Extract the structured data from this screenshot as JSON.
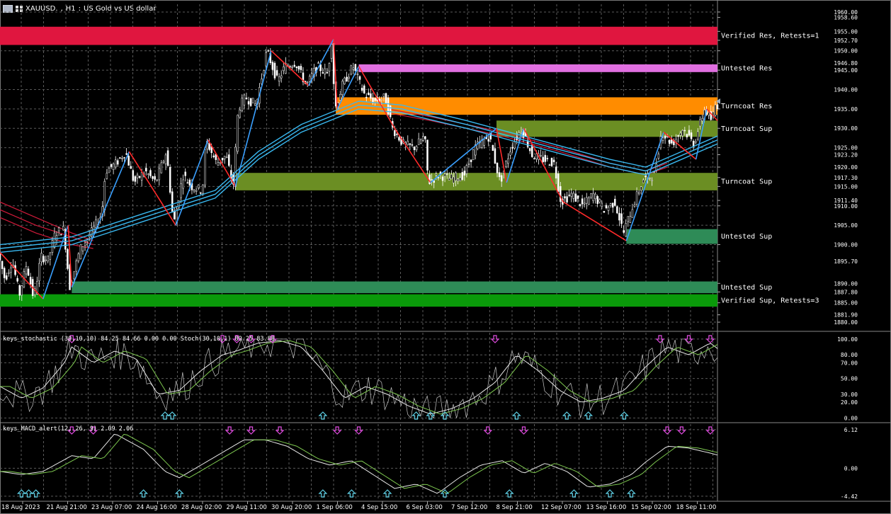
{
  "header": {
    "symbol": "XAUUSD.",
    "timeframe": "H1",
    "description": "US Gold vs US dollar",
    "flag_icon": "flag-icon",
    "chart_icon": "chart-grid-icon"
  },
  "colors": {
    "background": "#000000",
    "grid": "#5a5a5a",
    "candle": "#ffffff",
    "zigzag_up": "#3aa0ff",
    "zigzag_down": "#ff2a2a",
    "ma_fast": "#39b8f0",
    "ma_slow": "#d01a3a",
    "verified_res": "#e0163f",
    "untested_res": "#e06fe0",
    "turncoat_res": "#ff8c00",
    "turncoat_sup": "#6b8e23",
    "untested_sup": "#2e8b57",
    "verified_sup": "#0a9a0a",
    "arrow_up": "#5fd0e6",
    "arrow_down": "#e24de2",
    "axis_text": "#ffffff"
  },
  "chart_data": [
    {
      "type": "candlestick",
      "title": "XAUUSD., H1: US Gold vs US dollar",
      "x_tick_labels": [
        "18 Aug 2023",
        "21 Aug 21:00",
        "23 Aug 07:00",
        "24 Aug 16:00",
        "28 Aug 02:00",
        "29 Aug 11:00",
        "30 Aug 20:00",
        "1 Sep 06:00",
        "4 Sep 15:00",
        "6 Sep 03:00",
        "7 Sep 12:00",
        "8 Sep 21:00",
        "12 Sep 07:00",
        "13 Sep 16:00",
        "15 Sep 02:00",
        "18 Sep 11:00"
      ],
      "y_tick_labels": [
        "1960.00",
        "1958.60",
        "1955.00",
        "1952.70",
        "1950.00",
        "1946.80",
        "1945.00",
        "1940.00",
        "1935.00",
        "1930.00",
        "1925.00",
        "1923.20",
        "1920.00",
        "1917.30",
        "1915.00",
        "1911.40",
        "1910.00",
        "1905.00",
        "1900.00",
        "1895.70",
        "1890.00",
        "1887.80",
        "1885.00",
        "1881.90",
        "1880.00"
      ],
      "ylim": [
        1878,
        1962
      ],
      "zones": [
        {
          "kind": "verified_res",
          "low": 1951.5,
          "high": 1956.2,
          "start": 0.0,
          "label": "Verified Res, Retests=1"
        },
        {
          "kind": "untested_res",
          "low": 1944.5,
          "high": 1946.5,
          "start": 0.5,
          "label": "Untested Res"
        },
        {
          "kind": "turncoat_res",
          "low": 1933.5,
          "high": 1938.0,
          "start": 0.468,
          "label": "Turncoat Res"
        },
        {
          "kind": "turncoat_sup",
          "low": 1927.8,
          "high": 1932.0,
          "start": 0.692,
          "label": "Turncoat Sup"
        },
        {
          "kind": "turncoat_sup",
          "low": 1914.0,
          "high": 1918.5,
          "start": 0.328,
          "label": "Turncoat Sup"
        },
        {
          "kind": "untested_sup",
          "low": 1900.2,
          "high": 1904.0,
          "start": 0.873,
          "label": "Untested Sup"
        },
        {
          "kind": "untested_sup",
          "low": 1887.5,
          "high": 1890.5,
          "start": 0.1,
          "label": "Untested Sup"
        },
        {
          "kind": "verified_sup",
          "low": 1884.0,
          "high": 1887.2,
          "start": 0.0,
          "label": "Verified Sup, Retests=3"
        }
      ],
      "price_path": [
        [
          0.0,
          1898
        ],
        [
          0.01,
          1891
        ],
        [
          0.02,
          1896
        ],
        [
          0.03,
          1887
        ],
        [
          0.04,
          1895
        ],
        [
          0.05,
          1886
        ],
        [
          0.06,
          1897
        ],
        [
          0.07,
          1896
        ],
        [
          0.08,
          1903
        ],
        [
          0.092,
          1904
        ],
        [
          0.1,
          1889
        ],
        [
          0.115,
          1899
        ],
        [
          0.13,
          1903
        ],
        [
          0.145,
          1908
        ],
        [
          0.15,
          1919
        ],
        [
          0.165,
          1921
        ],
        [
          0.178,
          1924
        ],
        [
          0.19,
          1916
        ],
        [
          0.205,
          1919
        ],
        [
          0.22,
          1916
        ],
        [
          0.235,
          1924
        ],
        [
          0.245,
          1905
        ],
        [
          0.258,
          1918
        ],
        [
          0.27,
          1915
        ],
        [
          0.285,
          1914
        ],
        [
          0.29,
          1927
        ],
        [
          0.305,
          1921
        ],
        [
          0.318,
          1923
        ],
        [
          0.328,
          1915
        ],
        [
          0.335,
          1935
        ],
        [
          0.345,
          1938
        ],
        [
          0.36,
          1936
        ],
        [
          0.375,
          1950
        ],
        [
          0.39,
          1942
        ],
        [
          0.4,
          1946
        ],
        [
          0.415,
          1947
        ],
        [
          0.43,
          1941
        ],
        [
          0.445,
          1946
        ],
        [
          0.46,
          1944
        ],
        [
          0.465,
          1953
        ],
        [
          0.47,
          1935
        ],
        [
          0.48,
          1941
        ],
        [
          0.495,
          1946
        ],
        [
          0.51,
          1939
        ],
        [
          0.525,
          1937
        ],
        [
          0.54,
          1938
        ],
        [
          0.55,
          1930
        ],
        [
          0.565,
          1926
        ],
        [
          0.58,
          1925
        ],
        [
          0.595,
          1928
        ],
        [
          0.6,
          1916
        ],
        [
          0.615,
          1918
        ],
        [
          0.63,
          1917
        ],
        [
          0.65,
          1918
        ],
        [
          0.665,
          1925
        ],
        [
          0.685,
          1928
        ],
        [
          0.7,
          1916
        ],
        [
          0.715,
          1925
        ],
        [
          0.73,
          1930
        ],
        [
          0.745,
          1923
        ],
        [
          0.76,
          1922
        ],
        [
          0.775,
          1921
        ],
        [
          0.785,
          1911
        ],
        [
          0.8,
          1913
        ],
        [
          0.815,
          1910
        ],
        [
          0.83,
          1913
        ],
        [
          0.845,
          1909
        ],
        [
          0.86,
          1911
        ],
        [
          0.872,
          1903
        ],
        [
          0.885,
          1910
        ],
        [
          0.9,
          1917
        ],
        [
          0.915,
          1918
        ],
        [
          0.925,
          1929
        ],
        [
          0.94,
          1926
        ],
        [
          0.955,
          1930
        ],
        [
          0.97,
          1926
        ],
        [
          0.985,
          1935
        ],
        [
          0.995,
          1932
        ],
        [
          1.0,
          1936
        ]
      ],
      "zigzag": [
        [
          0.0,
          1898
        ],
        [
          0.06,
          1886
        ],
        [
          0.095,
          1905
        ],
        [
          0.1,
          1889
        ],
        [
          0.18,
          1924
        ],
        [
          0.245,
          1905
        ],
        [
          0.29,
          1927
        ],
        [
          0.328,
          1915
        ],
        [
          0.378,
          1950
        ],
        [
          0.43,
          1941
        ],
        [
          0.465,
          1953
        ],
        [
          0.47,
          1935
        ],
        [
          0.5,
          1946
        ],
        [
          0.55,
          1930
        ],
        [
          0.6,
          1916
        ],
        [
          0.692,
          1930
        ],
        [
          0.706,
          1916
        ],
        [
          0.73,
          1930
        ],
        [
          0.785,
          1911
        ],
        [
          0.873,
          1901
        ],
        [
          0.925,
          1929
        ],
        [
          0.97,
          1922
        ],
        [
          0.985,
          1935
        ],
        [
          1.0,
          1932
        ]
      ],
      "ma_fast_lines": [
        [
          [
            0.0,
            1898
          ],
          [
            0.1,
            1900
          ],
          [
            0.2,
            1906
          ],
          [
            0.3,
            1912
          ],
          [
            0.36,
            1922
          ],
          [
            0.42,
            1929
          ],
          [
            0.5,
            1935
          ],
          [
            0.56,
            1934
          ],
          [
            0.65,
            1930
          ],
          [
            0.75,
            1925
          ],
          [
            0.85,
            1920
          ],
          [
            0.9,
            1918
          ],
          [
            0.95,
            1922
          ],
          [
            1.0,
            1926
          ]
        ],
        [
          [
            0.0,
            1899
          ],
          [
            0.1,
            1901
          ],
          [
            0.2,
            1907
          ],
          [
            0.3,
            1913
          ],
          [
            0.36,
            1923
          ],
          [
            0.42,
            1930
          ],
          [
            0.5,
            1936
          ],
          [
            0.56,
            1935
          ],
          [
            0.65,
            1931
          ],
          [
            0.75,
            1926
          ],
          [
            0.85,
            1921
          ],
          [
            0.9,
            1919
          ],
          [
            0.95,
            1923
          ],
          [
            1.0,
            1927
          ]
        ],
        [
          [
            0.0,
            1900
          ],
          [
            0.1,
            1902
          ],
          [
            0.2,
            1908
          ],
          [
            0.3,
            1914
          ],
          [
            0.36,
            1924
          ],
          [
            0.42,
            1931
          ],
          [
            0.5,
            1937
          ],
          [
            0.56,
            1936
          ],
          [
            0.65,
            1932
          ],
          [
            0.75,
            1927
          ],
          [
            0.85,
            1922
          ],
          [
            0.9,
            1920
          ],
          [
            0.95,
            1924
          ],
          [
            1.0,
            1928
          ]
        ]
      ],
      "ma_slow_lines": [
        [
          [
            0.0,
            1911
          ],
          [
            0.05,
            1907
          ],
          [
            0.1,
            1903
          ],
          [
            0.13,
            1901
          ]
        ],
        [
          [
            0.0,
            1909
          ],
          [
            0.05,
            1905
          ],
          [
            0.1,
            1902
          ],
          [
            0.13,
            1900
          ]
        ],
        [
          [
            0.0,
            1907
          ],
          [
            0.05,
            1903
          ],
          [
            0.1,
            1900
          ],
          [
            0.13,
            1899
          ]
        ],
        [
          [
            0.54,
            1935
          ],
          [
            0.6,
            1933
          ],
          [
            0.7,
            1929
          ],
          [
            0.78,
            1925
          ],
          [
            0.85,
            1921
          ],
          [
            0.9,
            1919
          ],
          [
            0.93,
            1921
          ]
        ],
        [
          [
            0.54,
            1934
          ],
          [
            0.6,
            1932
          ],
          [
            0.7,
            1928
          ],
          [
            0.78,
            1924
          ],
          [
            0.85,
            1920
          ],
          [
            0.9,
            1918
          ],
          [
            0.93,
            1920
          ]
        ]
      ]
    },
    {
      "type": "line",
      "title": "keys_stochastic (30,10,10) 84.25 84.66 0.00 0.00 Stoch(30,10,1) 89.25 83.88",
      "y_tick_labels": [
        "100.00",
        "80.00",
        "70.00",
        "50.00",
        "30.00",
        "20.00",
        "0.00"
      ],
      "ylim": [
        -5,
        108
      ],
      "series": [
        {
          "values_x": [
            0.0,
            0.03,
            0.06,
            0.09,
            0.1,
            0.13,
            0.16,
            0.19,
            0.22,
            0.25,
            0.28,
            0.31,
            0.33,
            0.36,
            0.39,
            0.42,
            0.45,
            0.48,
            0.51,
            0.54,
            0.57,
            0.6,
            0.63,
            0.66,
            0.69,
            0.72,
            0.75,
            0.78,
            0.81,
            0.84,
            0.87,
            0.9,
            0.93,
            0.96,
            0.99,
            1.0
          ],
          "values": [
            40,
            25,
            38,
            70,
            90,
            70,
            85,
            75,
            30,
            35,
            60,
            80,
            85,
            95,
            98,
            90,
            60,
            25,
            40,
            30,
            15,
            5,
            12,
            25,
            45,
            80,
            60,
            35,
            20,
            25,
            35,
            65,
            90,
            80,
            95,
            88
          ]
        }
      ],
      "signals_up": [
        0.23,
        0.24,
        0.45,
        0.58,
        0.6,
        0.62,
        0.72,
        0.79,
        0.82,
        0.87
      ],
      "signals_down": [
        0.1,
        0.31,
        0.33,
        0.35,
        0.38,
        0.69,
        0.92,
        0.96,
        0.99
      ]
    },
    {
      "type": "line",
      "title": "keys_MACD_alert(12, 26, 9) 2.09 2.06",
      "y_tick_labels": [
        "6.12",
        "0.00",
        "-4.42"
      ],
      "ylim": [
        -5,
        7
      ],
      "series": [
        {
          "values_x": [
            0.0,
            0.03,
            0.06,
            0.1,
            0.13,
            0.16,
            0.2,
            0.23,
            0.25,
            0.28,
            0.31,
            0.34,
            0.37,
            0.4,
            0.43,
            0.46,
            0.49,
            0.52,
            0.55,
            0.58,
            0.61,
            0.64,
            0.67,
            0.7,
            0.73,
            0.76,
            0.79,
            0.82,
            0.85,
            0.88,
            0.9,
            0.93,
            0.96,
            0.99,
            1.0
          ],
          "values": [
            -0.5,
            -1,
            -0.5,
            2,
            1.5,
            5.5,
            3,
            -0.5,
            -1.5,
            0.5,
            2.5,
            4.5,
            4.5,
            3.5,
            1.5,
            0.5,
            1.2,
            -1,
            -3.2,
            -2.5,
            -4,
            -1.5,
            0.5,
            1.2,
            -0.8,
            0.8,
            -0.5,
            -3,
            -2.5,
            -1,
            1,
            3.5,
            3.2,
            2.4,
            2.1
          ]
        }
      ],
      "signals_up": [
        0.03,
        0.04,
        0.05,
        0.2,
        0.25,
        0.45,
        0.49,
        0.54,
        0.62,
        0.71,
        0.8,
        0.85,
        0.88
      ],
      "signals_down": [
        0.1,
        0.13,
        0.32,
        0.35,
        0.39,
        0.47,
        0.5,
        0.68,
        0.73,
        0.93,
        0.95,
        0.99
      ]
    }
  ]
}
